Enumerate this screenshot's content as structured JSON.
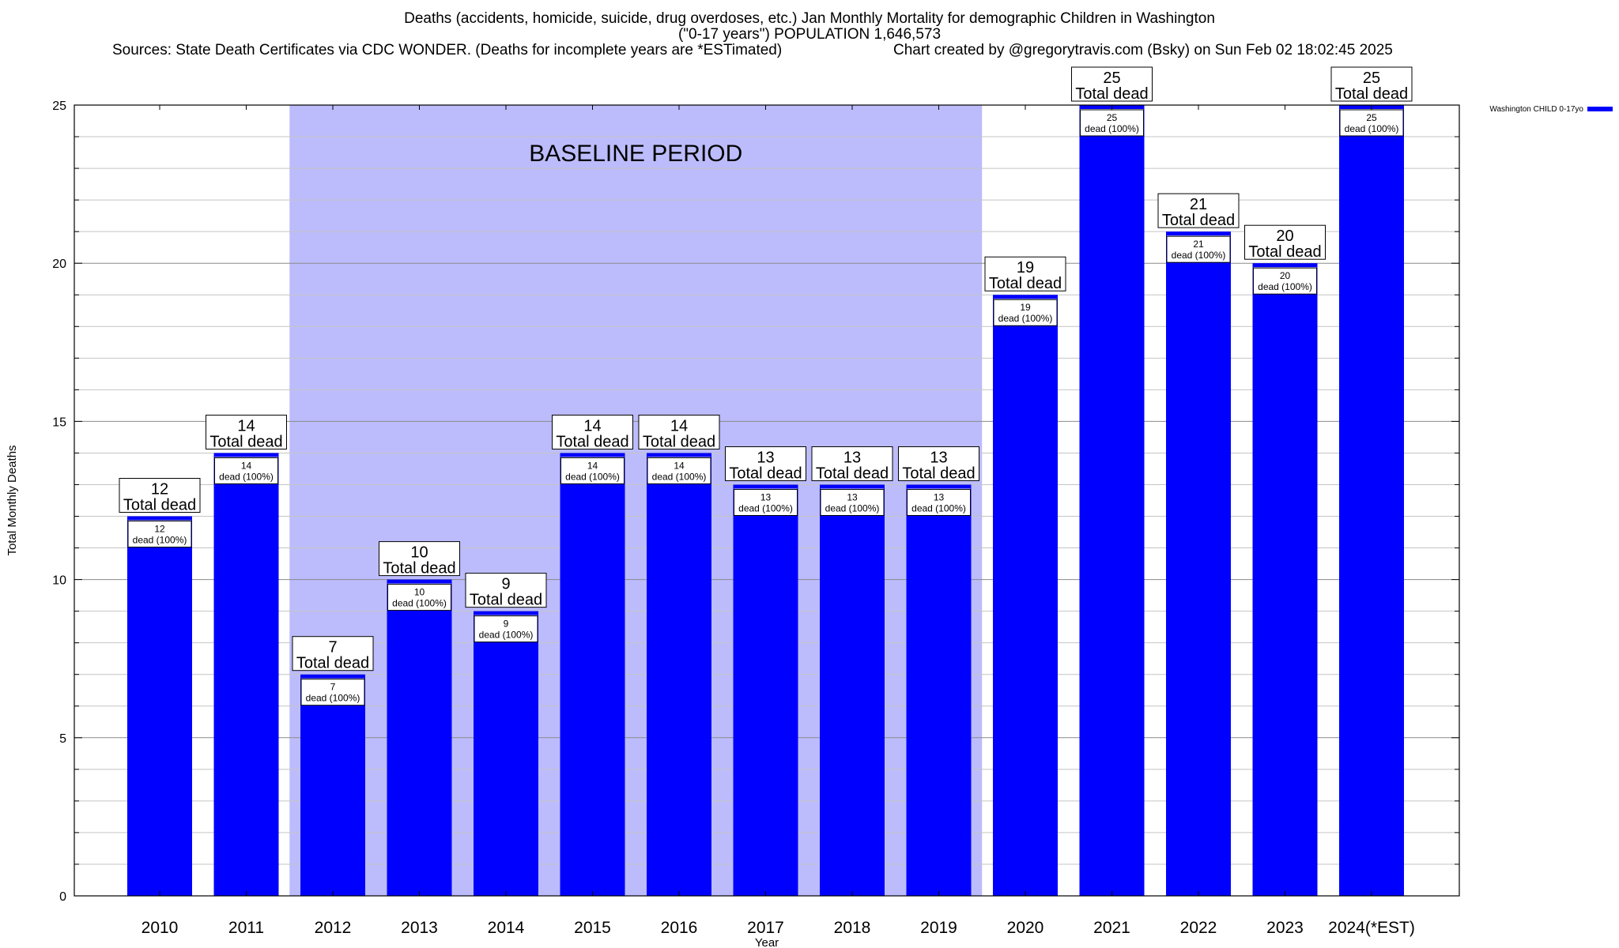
{
  "header": {
    "title_line1": "Deaths (accidents, homicide, suicide, drug overdoses, etc.) Jan Monthly Mortality for demographic Children in Washington",
    "title_line2": "(\"0-17 years\") POPULATION 1,646,573",
    "sources": "Sources: State Death Certificates via CDC WONDER. (Deaths for incomplete years are *ESTimated)",
    "credit": "Chart created by @gregorytravis.com (Bsky) on Sun Feb 02 18:02:45 2025"
  },
  "chart_data": {
    "type": "bar",
    "title": "Deaths (accidents, homicide, suicide, drug overdoses, etc.) Jan Monthly Mortality for demographic Children in Washington",
    "xlabel": "Year",
    "ylabel": "Total Monthly Deaths",
    "ylim": [
      0,
      25
    ],
    "yticks": [
      0,
      5,
      10,
      15,
      20,
      25
    ],
    "grid": true,
    "legend_position": "top-right",
    "categories": [
      "2010",
      "2011",
      "2012",
      "2013",
      "2014",
      "2015",
      "2016",
      "2017",
      "2018",
      "2019",
      "2020",
      "2021",
      "2022",
      "2023",
      "2024(*EST)"
    ],
    "series": [
      {
        "name": "Washington CHILD 0-17yo",
        "color": "#0000ff",
        "values": [
          12,
          14,
          7,
          10,
          9,
          14,
          14,
          13,
          13,
          13,
          19,
          25,
          21,
          20,
          25
        ]
      }
    ],
    "top_label_suffix": "Total dead",
    "inner_label_suffix": "dead (100%)",
    "baseline": {
      "label": "BASELINE PERIOD",
      "start_category": "2012",
      "end_category": "2019",
      "color": "#bcbcfc"
    }
  }
}
